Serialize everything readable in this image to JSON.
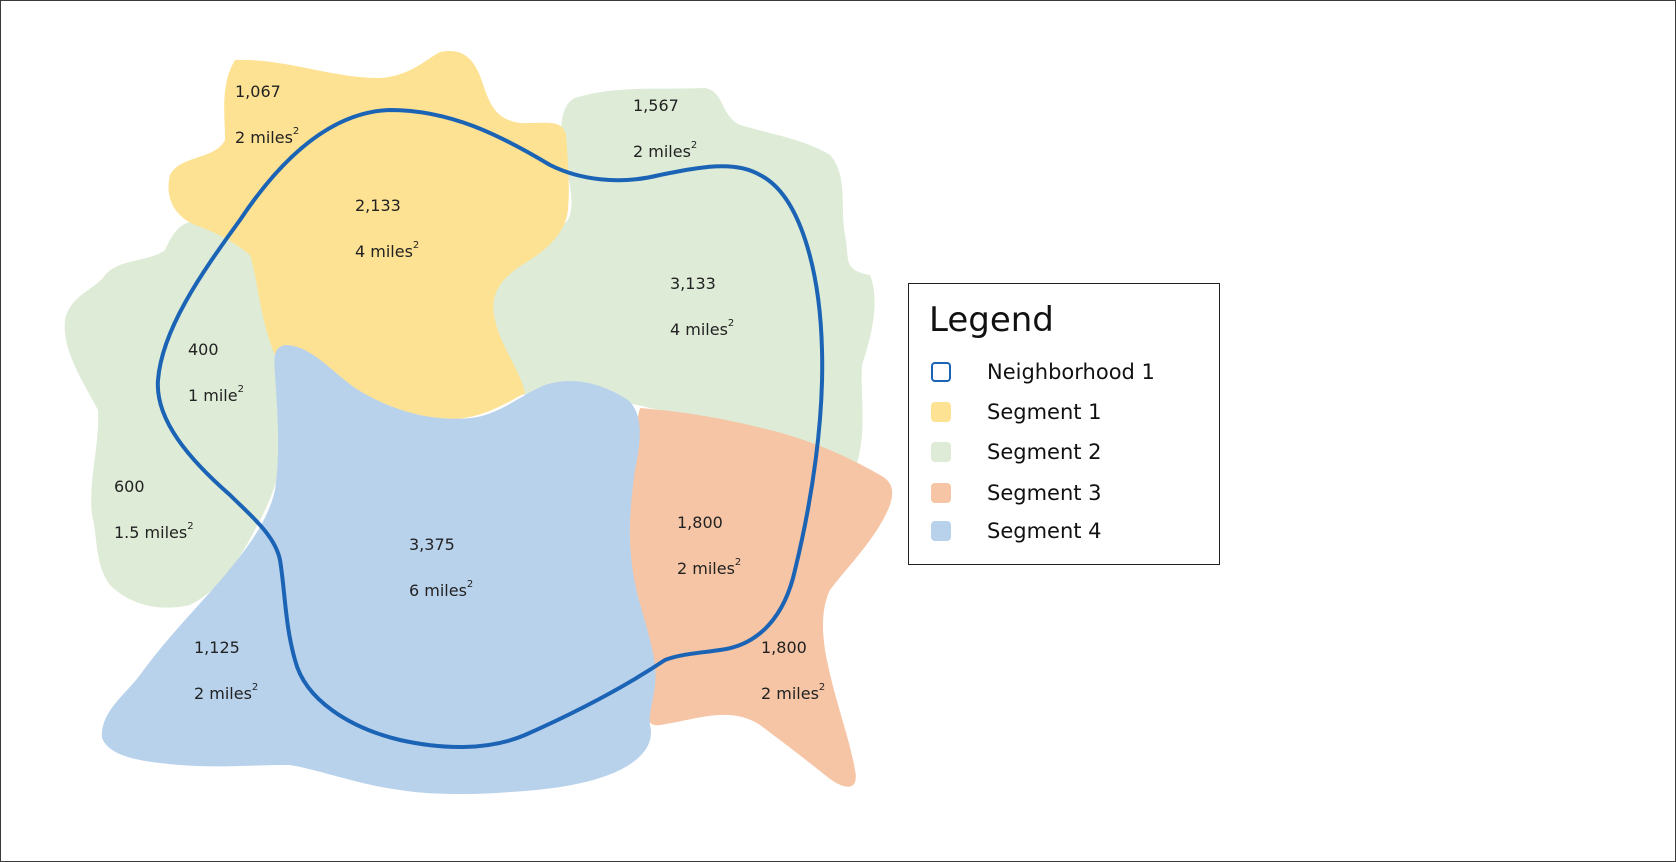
{
  "colors": {
    "segment1": "#fde293",
    "segment2": "#deebd6",
    "segment3": "#f5c5a5",
    "segment4": "#b9d2ec",
    "neighborhood": "#1b63b5"
  },
  "regions": [
    {
      "segment": "Segment 1",
      "population": "1,067",
      "area": "2 miles",
      "area_sup": "2"
    },
    {
      "segment": "Segment 1",
      "population": "2,133",
      "area": "4 miles",
      "area_sup": "2"
    },
    {
      "segment": "Segment 2",
      "population": "1,567",
      "area": "2 miles",
      "area_sup": "2"
    },
    {
      "segment": "Segment 2",
      "population": "3,133",
      "area": "4 miles",
      "area_sup": "2"
    },
    {
      "segment": "Segment 2",
      "population": "400",
      "area": "1 mile",
      "area_sup": "2"
    },
    {
      "segment": "Segment 2",
      "population": "600",
      "area": "1.5 miles",
      "area_sup": "2"
    },
    {
      "segment": "Segment 4",
      "population": "3,375",
      "area": "6 miles",
      "area_sup": "2"
    },
    {
      "segment": "Segment 4",
      "population": "1,125",
      "area": "2 miles",
      "area_sup": "2"
    },
    {
      "segment": "Segment 3",
      "population": "1,800",
      "area": "2 miles",
      "area_sup": "2"
    },
    {
      "segment": "Segment 3",
      "population": "1,800",
      "area": "2 miles",
      "area_sup": "2"
    }
  ],
  "legend": {
    "title": "Legend",
    "items": [
      {
        "label": "Neighborhood 1"
      },
      {
        "label": "Segment 1"
      },
      {
        "label": "Segment 2"
      },
      {
        "label": "Segment 3"
      },
      {
        "label": "Segment 4"
      }
    ]
  }
}
